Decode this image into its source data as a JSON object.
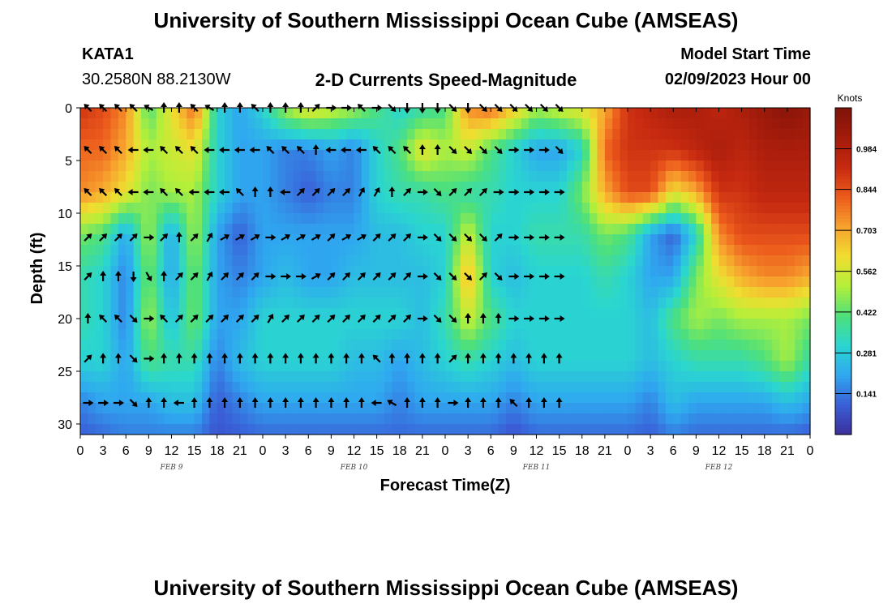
{
  "title": "University of Southern Mississippi Ocean Cube (AMSEAS)",
  "footer_title": "University of Southern Mississippi Ocean Cube (AMSEAS)",
  "station": {
    "name": "KATA1",
    "coords": "30.2580N  88.2130W"
  },
  "plot_title": "2-D Currents Speed-Magnitude",
  "model": {
    "label": "Model Start Time",
    "value": "02/09/2023 Hour 00"
  },
  "colorbar": {
    "unit": "Knots",
    "ticks": [
      "0.984",
      "0.844",
      "0.703",
      "0.562",
      "0.422",
      "0.281",
      "0.141"
    ],
    "tick_values": [
      0.984,
      0.844,
      0.703,
      0.562,
      0.422,
      0.281,
      0.141
    ],
    "range": [
      0,
      1.125
    ]
  },
  "chart_data": {
    "type": "heatmap",
    "title": "2-D Currents Speed-Magnitude",
    "xlabel": "Forecast Time(Z)",
    "ylabel": "Depth (ft)",
    "x_ticks": [
      "0",
      "3",
      "6",
      "9",
      "12",
      "15",
      "18",
      "21",
      "0",
      "3",
      "6",
      "9",
      "12",
      "15",
      "18",
      "21",
      "0",
      "3",
      "6",
      "9",
      "12",
      "15",
      "18",
      "21",
      "0",
      "3",
      "6",
      "9",
      "12",
      "15",
      "18",
      "21",
      "0"
    ],
    "x_range_hours": [
      0,
      96
    ],
    "y_ticks": [
      0,
      5,
      10,
      15,
      20,
      25,
      30
    ],
    "y_range": [
      0,
      31
    ],
    "date_labels": [
      {
        "text": "FEB 9",
        "hour": 12
      },
      {
        "text": "FEB 10",
        "hour": 36
      },
      {
        "text": "FEB 11",
        "hour": 60
      },
      {
        "text": "FEB 12",
        "hour": 84
      }
    ],
    "speed_knots": [
      [
        0.9,
        0.85,
        0.75,
        0.4,
        0.6,
        0.8,
        0.3,
        0.2,
        0.3,
        0.5,
        0.6,
        0.55,
        0.5,
        0.4,
        0.3,
        0.35,
        0.4,
        0.75,
        0.8,
        0.65,
        0.5,
        0.55,
        0.6,
        0.7,
        0.9,
        0.95,
        1.0,
        1.0,
        0.95,
        1.0,
        1.05,
        1.1,
        1.05
      ],
      [
        0.8,
        0.8,
        0.7,
        0.5,
        0.55,
        0.6,
        0.3,
        0.2,
        0.2,
        0.15,
        0.15,
        0.2,
        0.15,
        0.3,
        0.4,
        0.6,
        0.5,
        0.55,
        0.4,
        0.3,
        0.2,
        0.2,
        0.3,
        0.8,
        0.9,
        0.9,
        0.9,
        0.95,
        1.0,
        0.95,
        1.0,
        1.0,
        1.0
      ],
      [
        0.75,
        0.7,
        0.6,
        0.45,
        0.5,
        0.5,
        0.3,
        0.2,
        0.2,
        0.15,
        0.1,
        0.15,
        0.15,
        0.3,
        0.35,
        0.35,
        0.4,
        0.35,
        0.35,
        0.3,
        0.3,
        0.3,
        0.45,
        0.7,
        0.85,
        0.85,
        0.6,
        0.7,
        0.9,
        0.9,
        0.95,
        0.95,
        0.95
      ],
      [
        0.45,
        0.4,
        0.2,
        0.5,
        0.2,
        0.5,
        0.2,
        0.1,
        0.2,
        0.2,
        0.2,
        0.2,
        0.2,
        0.25,
        0.25,
        0.3,
        0.3,
        0.55,
        0.3,
        0.3,
        0.35,
        0.35,
        0.35,
        0.45,
        0.4,
        0.2,
        0.1,
        0.3,
        0.75,
        0.85,
        0.85,
        0.85,
        0.85
      ],
      [
        0.35,
        0.3,
        0.15,
        0.45,
        0.2,
        0.45,
        0.2,
        0.15,
        0.2,
        0.25,
        0.2,
        0.2,
        0.25,
        0.25,
        0.25,
        0.25,
        0.3,
        0.7,
        0.3,
        0.25,
        0.3,
        0.3,
        0.3,
        0.35,
        0.3,
        0.2,
        0.2,
        0.45,
        0.6,
        0.7,
        0.75,
        0.75,
        0.7
      ],
      [
        0.35,
        0.3,
        0.15,
        0.5,
        0.25,
        0.45,
        0.2,
        0.2,
        0.3,
        0.3,
        0.3,
        0.3,
        0.3,
        0.3,
        0.3,
        0.25,
        0.35,
        0.55,
        0.4,
        0.3,
        0.3,
        0.3,
        0.3,
        0.3,
        0.3,
        0.25,
        0.4,
        0.5,
        0.45,
        0.5,
        0.5,
        0.5,
        0.45
      ],
      [
        0.3,
        0.3,
        0.2,
        0.4,
        0.35,
        0.35,
        0.15,
        0.25,
        0.3,
        0.3,
        0.3,
        0.3,
        0.25,
        0.25,
        0.2,
        0.25,
        0.3,
        0.35,
        0.3,
        0.25,
        0.3,
        0.3,
        0.3,
        0.3,
        0.3,
        0.25,
        0.3,
        0.35,
        0.35,
        0.35,
        0.4,
        0.5,
        0.35
      ],
      [
        0.15,
        0.2,
        0.2,
        0.2,
        0.25,
        0.25,
        0.1,
        0.15,
        0.2,
        0.2,
        0.2,
        0.2,
        0.2,
        0.2,
        0.15,
        0.2,
        0.2,
        0.2,
        0.2,
        0.15,
        0.2,
        0.2,
        0.2,
        0.2,
        0.2,
        0.15,
        0.25,
        0.2,
        0.2,
        0.2,
        0.2,
        0.25,
        0.2
      ],
      [
        0.1,
        0.12,
        0.15,
        0.15,
        0.15,
        0.15,
        0.08,
        0.1,
        0.12,
        0.12,
        0.12,
        0.12,
        0.12,
        0.12,
        0.12,
        0.12,
        0.12,
        0.12,
        0.12,
        0.08,
        0.12,
        0.12,
        0.12,
        0.12,
        0.12,
        0.1,
        0.15,
        0.12,
        0.12,
        0.12,
        0.12,
        0.12,
        0.1
      ]
    ],
    "speed_depths_ft": [
      0,
      4,
      8,
      12,
      16,
      20,
      24,
      28,
      31
    ],
    "vector_depths_ft": [
      0,
      4,
      8,
      12.3,
      16,
      20,
      23.8,
      28
    ],
    "vector_hours_step": 2,
    "vector_directions_deg": [
      [
        315,
        315,
        315,
        315,
        300,
        0,
        0,
        315,
        300,
        0,
        0,
        315,
        0,
        0,
        0,
        45,
        90,
        90,
        315,
        90,
        135,
        180,
        180,
        180,
        135,
        180,
        135,
        135,
        135,
        135,
        135,
        135
      ],
      [
        315,
        315,
        315,
        270,
        270,
        315,
        315,
        315,
        270,
        270,
        270,
        270,
        315,
        315,
        315,
        0,
        270,
        270,
        270,
        315,
        315,
        315,
        0,
        0,
        135,
        135,
        135,
        135,
        90,
        90,
        90,
        135
      ],
      [
        315,
        315,
        315,
        270,
        270,
        315,
        315,
        270,
        270,
        270,
        315,
        0,
        0,
        270,
        45,
        45,
        45,
        45,
        30,
        30,
        0,
        45,
        90,
        135,
        45,
        45,
        45,
        90,
        90,
        90,
        90,
        90
      ],
      [
        45,
        45,
        45,
        45,
        90,
        45,
        0,
        45,
        30,
        60,
        60,
        60,
        90,
        60,
        60,
        60,
        45,
        60,
        60,
        45,
        45,
        45,
        90,
        135,
        135,
        135,
        135,
        45,
        90,
        90,
        90,
        90
      ],
      [
        45,
        0,
        0,
        180,
        150,
        0,
        45,
        45,
        30,
        45,
        45,
        45,
        90,
        90,
        90,
        60,
        45,
        45,
        45,
        45,
        45,
        45,
        90,
        135,
        135,
        135,
        45,
        135,
        90,
        90,
        90,
        90
      ],
      [
        0,
        315,
        315,
        135,
        90,
        315,
        45,
        45,
        45,
        45,
        45,
        45,
        30,
        45,
        45,
        45,
        45,
        45,
        45,
        45,
        45,
        45,
        90,
        135,
        135,
        0,
        0,
        0,
        90,
        90,
        90,
        90
      ],
      [
        45,
        0,
        0,
        135,
        90,
        0,
        0,
        0,
        0,
        0,
        0,
        0,
        0,
        0,
        0,
        0,
        0,
        0,
        0,
        315,
        0,
        0,
        0,
        0,
        45,
        0,
        0,
        0,
        0,
        0,
        0,
        0
      ],
      [
        90,
        90,
        90,
        135,
        0,
        0,
        270,
        0,
        0,
        0,
        0,
        0,
        0,
        0,
        0,
        0,
        0,
        0,
        0,
        270,
        300,
        0,
        0,
        0,
        90,
        0,
        0,
        0,
        315,
        0,
        0,
        0
      ]
    ]
  },
  "colors": {
    "ramp": [
      "#3b2f9a",
      "#3a5fd8",
      "#2fa8f0",
      "#2ad6d0",
      "#4fe07a",
      "#b4ef3a",
      "#f0dd30",
      "#f7a22e",
      "#ec5a1c",
      "#c72a10",
      "#a31b0b",
      "#7e130a"
    ],
    "arrow": "#000000"
  }
}
